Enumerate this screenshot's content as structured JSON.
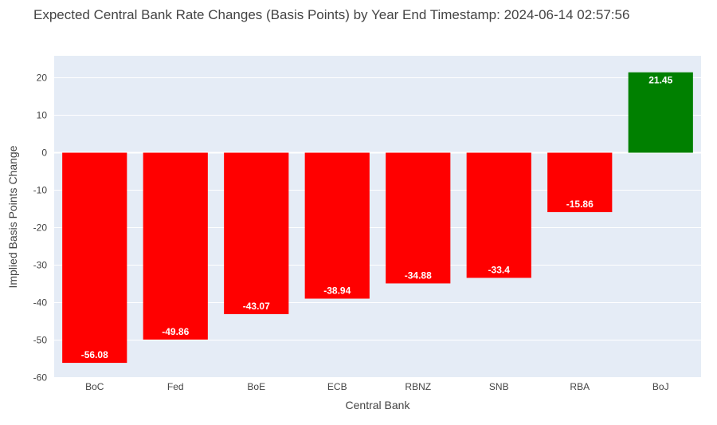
{
  "chart_data": {
    "type": "bar",
    "title": "Expected Central Bank Rate Changes (Basis Points) by Year End Timestamp: 2024-06-14 02:57:56",
    "xlabel": "Central Bank",
    "ylabel": "Implied Basis Points Change",
    "categories": [
      "BoC",
      "Fed",
      "BoE",
      "ECB",
      "RBNZ",
      "SNB",
      "RBA",
      "BoJ"
    ],
    "values": [
      -56.08,
      -49.86,
      -43.07,
      -38.94,
      -34.88,
      -33.4,
      -15.86,
      21.45
    ],
    "value_labels": [
      "-56.08",
      "-49.86",
      "-43.07",
      "-38.94",
      "-34.88",
      "-33.4",
      "-15.86",
      "21.45"
    ],
    "ylim": [
      -60,
      25
    ],
    "yticks": [
      20,
      10,
      0,
      -10,
      -20,
      -30,
      -40,
      -50,
      -60
    ],
    "grid": true,
    "legend": "none",
    "colors": {
      "negative": "#ff0000",
      "positive": "#008000",
      "plot_background": "#e5ecf6",
      "gridline": "#ffffff",
      "title_text": "#444444",
      "label_text": "#444444",
      "bar_label_text": "#ffffff"
    }
  }
}
